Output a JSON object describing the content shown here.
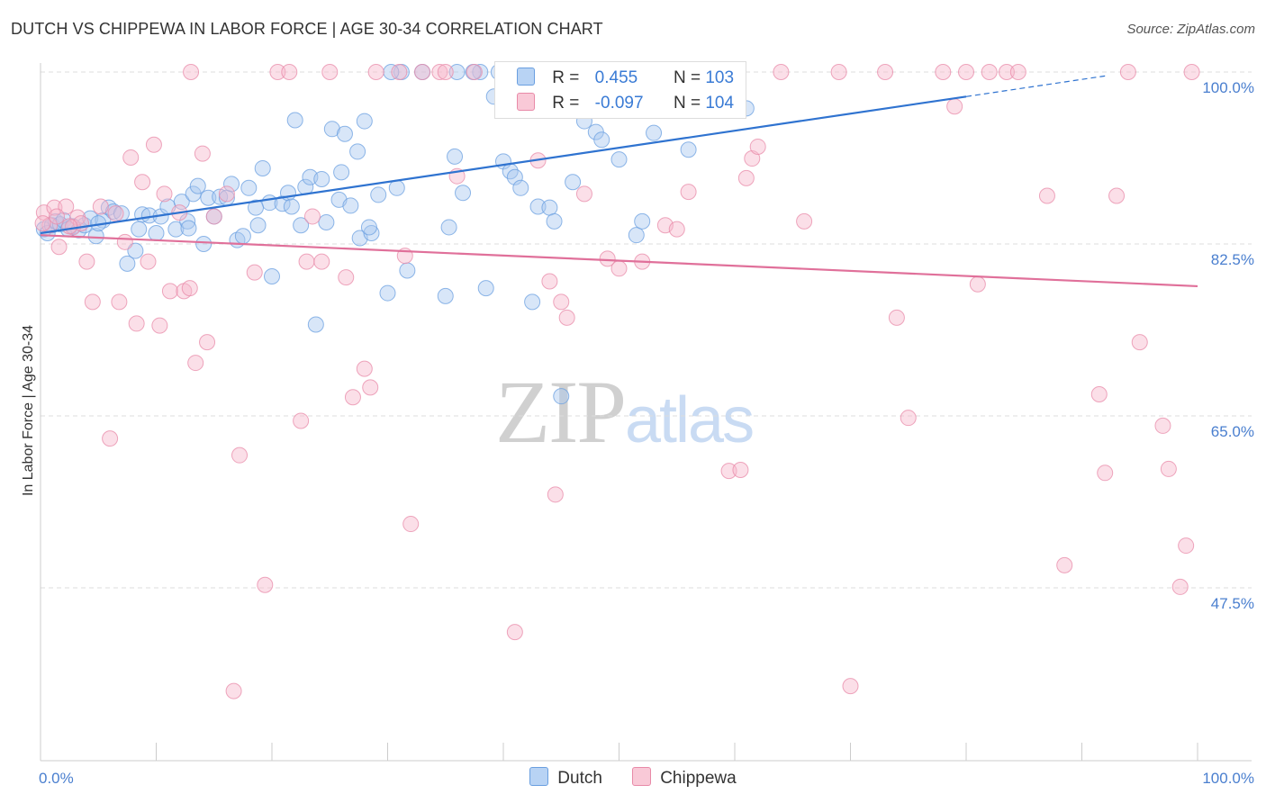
{
  "header": {
    "title": "DUTCH VS CHIPPEWA IN LABOR FORCE | AGE 30-34 CORRELATION CHART",
    "source": "Source: ZipAtlas.com"
  },
  "legend": {
    "r_label": "R =",
    "n_label": "N =",
    "series": [
      {
        "name": "Dutch",
        "r": "0.455",
        "n": "103",
        "color": "#a8c8f0",
        "edge": "#6a9fe0"
      },
      {
        "name": "Chippewa",
        "r": "-0.097",
        "n": "104",
        "color": "#f7b8cb",
        "edge": "#e88aa8"
      }
    ]
  },
  "watermark": {
    "zip": "ZIP",
    "atlas": "atlas"
  },
  "chart_data": {
    "type": "scatter",
    "ylabel": "In Labor Force | Age 30-34",
    "xlim": [
      0,
      100
    ],
    "ylim": [
      30,
      102
    ],
    "x_tick_labels": [
      "0.0%",
      "100.0%"
    ],
    "y_ticks": [
      100.0,
      82.5,
      65.0,
      47.5
    ],
    "y_tick_labels": [
      "100.0%",
      "82.5%",
      "65.0%",
      "47.5%"
    ],
    "grid": true,
    "legend_position": "top-center",
    "series": [
      {
        "name": "Dutch",
        "color": "#a8c8f0",
        "line_color": "#2f73d0",
        "trend": {
          "x": [
            0,
            80
          ],
          "y": [
            83.6,
            97.5
          ],
          "dashed_to": [
            92,
            99.6
          ]
        },
        "points": [
          [
            0.3,
            84.0
          ],
          [
            0.6,
            83.6
          ],
          [
            1.0,
            84.4
          ],
          [
            1.3,
            84.8
          ],
          [
            1.7,
            84.5
          ],
          [
            2.0,
            84.9
          ],
          [
            2.4,
            84.0
          ],
          [
            2.8,
            84.3
          ],
          [
            3.3,
            83.9
          ],
          [
            3.8,
            84.4
          ],
          [
            4.3,
            85.1
          ],
          [
            4.8,
            83.3
          ],
          [
            5.4,
            84.9
          ],
          [
            5.9,
            86.2
          ],
          [
            6.3,
            85.8
          ],
          [
            7.0,
            85.6
          ],
          [
            7.5,
            80.5
          ],
          [
            8.2,
            81.8
          ],
          [
            8.8,
            85.5
          ],
          [
            9.4,
            85.4
          ],
          [
            10.0,
            83.6
          ],
          [
            10.4,
            85.3
          ],
          [
            11.0,
            86.3
          ],
          [
            11.7,
            84.0
          ],
          [
            12.2,
            86.8
          ],
          [
            12.7,
            84.8
          ],
          [
            13.2,
            87.6
          ],
          [
            13.6,
            88.4
          ],
          [
            14.1,
            82.5
          ],
          [
            14.5,
            87.2
          ],
          [
            15.0,
            85.3
          ],
          [
            15.5,
            87.3
          ],
          [
            16.1,
            87.2
          ],
          [
            16.5,
            88.6
          ],
          [
            17.0,
            82.9
          ],
          [
            17.5,
            83.3
          ],
          [
            18.0,
            88.2
          ],
          [
            18.8,
            84.4
          ],
          [
            19.2,
            90.2
          ],
          [
            19.8,
            86.7
          ],
          [
            20.0,
            79.2
          ],
          [
            20.9,
            86.6
          ],
          [
            21.4,
            87.7
          ],
          [
            21.7,
            86.3
          ],
          [
            22.0,
            95.1
          ],
          [
            22.9,
            88.3
          ],
          [
            23.3,
            89.3
          ],
          [
            23.8,
            74.3
          ],
          [
            24.3,
            89.1
          ],
          [
            24.7,
            84.7
          ],
          [
            25.2,
            94.2
          ],
          [
            25.8,
            87.0
          ],
          [
            26.0,
            89.8
          ],
          [
            26.3,
            93.7
          ],
          [
            26.8,
            86.4
          ],
          [
            27.4,
            91.9
          ],
          [
            27.6,
            83.1
          ],
          [
            28.0,
            95.0
          ],
          [
            28.6,
            83.6
          ],
          [
            29.2,
            87.5
          ],
          [
            30.0,
            77.5
          ],
          [
            30.8,
            88.2
          ],
          [
            31.7,
            79.8
          ],
          [
            33.0,
            100.0
          ],
          [
            35.0,
            77.2
          ],
          [
            35.3,
            84.2
          ],
          [
            35.8,
            91.4
          ],
          [
            36.5,
            87.7
          ],
          [
            38.0,
            100.0
          ],
          [
            38.5,
            78.0
          ],
          [
            39.2,
            97.5
          ],
          [
            40.0,
            90.9
          ],
          [
            40.6,
            89.9
          ],
          [
            41.0,
            89.3
          ],
          [
            41.5,
            88.2
          ],
          [
            42.5,
            76.6
          ],
          [
            43.0,
            86.3
          ],
          [
            44.0,
            86.2
          ],
          [
            44.4,
            84.8
          ],
          [
            45.0,
            67.0
          ],
          [
            46.0,
            88.8
          ],
          [
            47.0,
            95.0
          ],
          [
            48.0,
            93.9
          ],
          [
            48.5,
            93.1
          ],
          [
            50.0,
            91.1
          ],
          [
            51.0,
            97.6
          ],
          [
            51.5,
            83.4
          ],
          [
            52.0,
            84.8
          ],
          [
            53.0,
            93.8
          ],
          [
            56.0,
            92.1
          ],
          [
            60.0,
            100.0
          ],
          [
            61.0,
            96.3
          ],
          [
            8.5,
            84.0
          ],
          [
            12.8,
            84.1
          ],
          [
            18.6,
            86.2
          ],
          [
            22.5,
            84.4
          ],
          [
            28.4,
            84.2
          ],
          [
            5.0,
            84.6
          ],
          [
            36.0,
            100.0
          ],
          [
            31.2,
            100.0
          ],
          [
            30.3,
            100.0
          ],
          [
            37.4,
            100.0
          ],
          [
            39.6,
            100.0
          ]
        ]
      },
      {
        "name": "Chippewa",
        "color": "#f7b8cb",
        "line_color": "#e0709a",
        "trend": {
          "x": [
            0,
            100
          ],
          "y": [
            83.4,
            78.2
          ]
        },
        "points": [
          [
            0.3,
            85.7
          ],
          [
            0.8,
            84.4
          ],
          [
            1.2,
            86.2
          ],
          [
            1.6,
            82.2
          ],
          [
            2.2,
            86.3
          ],
          [
            2.8,
            84.2
          ],
          [
            3.2,
            85.2
          ],
          [
            4.0,
            80.7
          ],
          [
            4.5,
            76.6
          ],
          [
            5.2,
            86.3
          ],
          [
            6.0,
            62.7
          ],
          [
            6.8,
            76.6
          ],
          [
            7.3,
            82.7
          ],
          [
            7.8,
            91.3
          ],
          [
            8.3,
            74.4
          ],
          [
            8.8,
            88.8
          ],
          [
            9.3,
            80.7
          ],
          [
            9.8,
            92.6
          ],
          [
            10.3,
            74.2
          ],
          [
            10.7,
            87.6
          ],
          [
            11.2,
            77.7
          ],
          [
            12.0,
            85.7
          ],
          [
            12.4,
            77.7
          ],
          [
            12.9,
            78.0
          ],
          [
            13.4,
            70.4
          ],
          [
            14.0,
            91.7
          ],
          [
            14.4,
            72.5
          ],
          [
            15.0,
            85.3
          ],
          [
            16.1,
            87.6
          ],
          [
            16.7,
            37.0
          ],
          [
            17.2,
            61.0
          ],
          [
            18.5,
            79.6
          ],
          [
            19.4,
            47.8
          ],
          [
            20.5,
            100.0
          ],
          [
            21.5,
            100.0
          ],
          [
            22.5,
            64.5
          ],
          [
            23.0,
            80.7
          ],
          [
            23.5,
            85.3
          ],
          [
            24.3,
            80.7
          ],
          [
            25.0,
            100.0
          ],
          [
            26.4,
            79.1
          ],
          [
            27.0,
            66.9
          ],
          [
            28.0,
            69.8
          ],
          [
            28.5,
            67.9
          ],
          [
            29.0,
            100.0
          ],
          [
            31.0,
            100.0
          ],
          [
            31.5,
            81.3
          ],
          [
            32.0,
            54.0
          ],
          [
            33.0,
            100.0
          ],
          [
            34.5,
            100.0
          ],
          [
            35.0,
            100.0
          ],
          [
            36.0,
            89.4
          ],
          [
            37.5,
            100.0
          ],
          [
            41.0,
            43.0
          ],
          [
            43.0,
            91.0
          ],
          [
            44.0,
            78.7
          ],
          [
            44.5,
            57.0
          ],
          [
            45.0,
            76.6
          ],
          [
            45.5,
            75.0
          ],
          [
            47.0,
            87.6
          ],
          [
            49.0,
            81.0
          ],
          [
            50.0,
            80.0
          ],
          [
            52.0,
            80.7
          ],
          [
            54.0,
            84.4
          ],
          [
            55.0,
            84.0
          ],
          [
            56.0,
            87.8
          ],
          [
            57.0,
            100.0
          ],
          [
            59.5,
            59.4
          ],
          [
            60.5,
            59.5
          ],
          [
            61.0,
            89.2
          ],
          [
            61.5,
            91.2
          ],
          [
            62.0,
            92.4
          ],
          [
            64.0,
            100.0
          ],
          [
            66.0,
            84.8
          ],
          [
            69.0,
            100.0
          ],
          [
            70.0,
            37.5
          ],
          [
            73.0,
            100.0
          ],
          [
            74.0,
            75.0
          ],
          [
            75.0,
            64.8
          ],
          [
            78.0,
            100.0
          ],
          [
            79.0,
            96.5
          ],
          [
            80.0,
            100.0
          ],
          [
            81.0,
            78.4
          ],
          [
            82.0,
            100.0
          ],
          [
            83.5,
            100.0
          ],
          [
            84.5,
            100.0
          ],
          [
            87.0,
            87.4
          ],
          [
            88.5,
            49.8
          ],
          [
            91.5,
            67.2
          ],
          [
            92.0,
            59.2
          ],
          [
            93.0,
            87.4
          ],
          [
            94.0,
            100.0
          ],
          [
            95.0,
            72.5
          ],
          [
            97.0,
            64.0
          ],
          [
            97.5,
            59.6
          ],
          [
            98.5,
            47.6
          ],
          [
            99.0,
            51.8
          ],
          [
            99.5,
            100.0
          ],
          [
            13.0,
            100.0
          ],
          [
            3.5,
            84.6
          ],
          [
            6.5,
            85.6
          ],
          [
            2.5,
            84.3
          ],
          [
            1.4,
            85.3
          ],
          [
            0.2,
            84.6
          ]
        ]
      }
    ]
  }
}
